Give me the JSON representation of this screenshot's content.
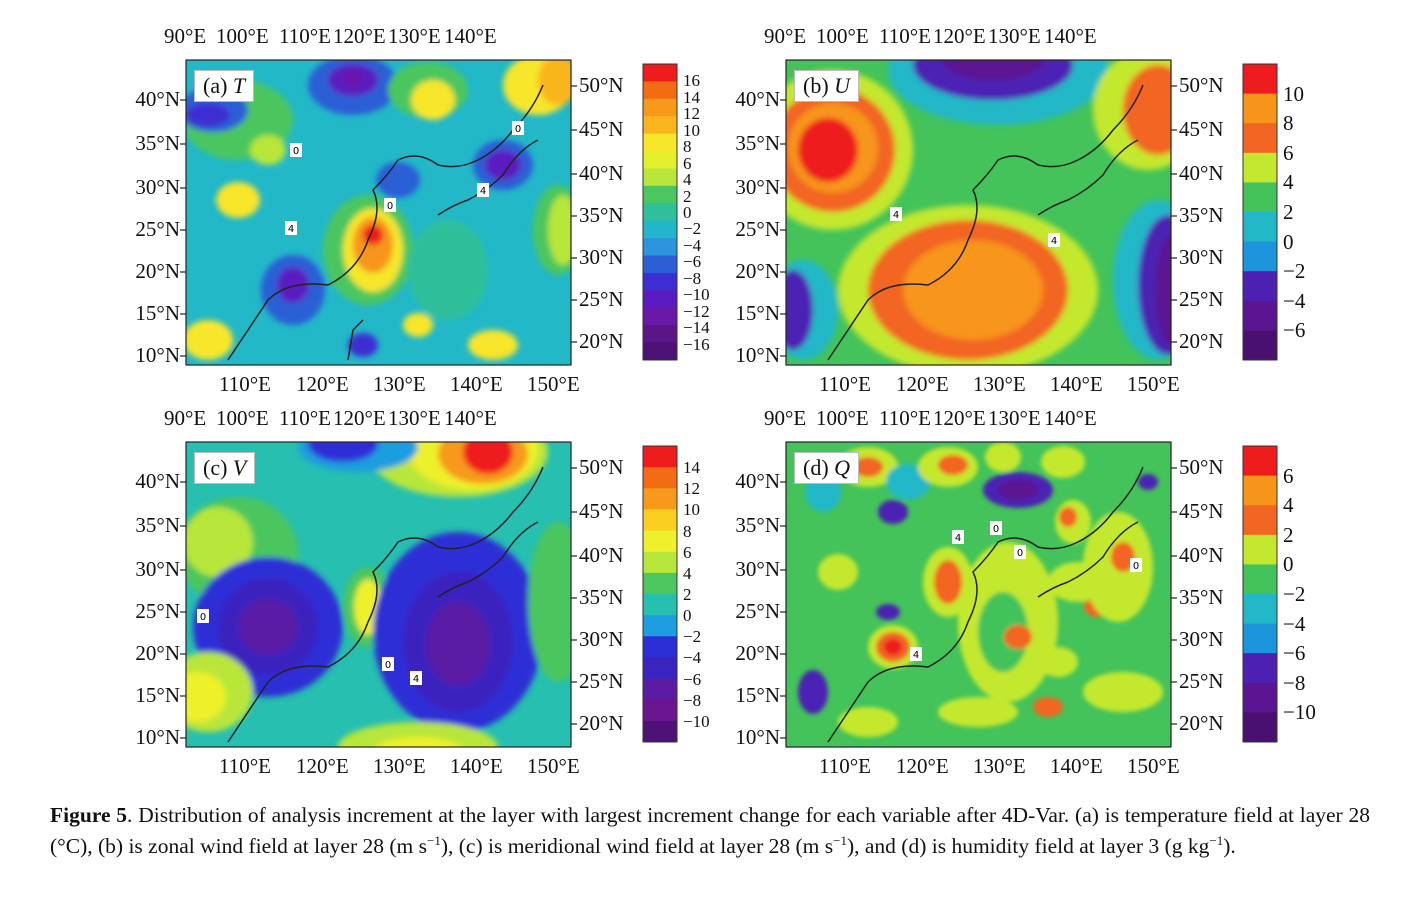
{
  "figure": {
    "top_lon_ticks": [
      "90°E",
      "100°E",
      "110°E",
      "120°E",
      "130°E",
      "140°E"
    ],
    "bottom_lon_ticks": [
      "110°E",
      "120°E",
      "130°E",
      "140°E",
      "150°E"
    ],
    "left_lat_ticks": [
      "40°N",
      "35°N",
      "30°N",
      "25°N",
      "20°N",
      "15°N",
      "10°N"
    ],
    "right_lat_ticks": [
      "50°N",
      "45°N",
      "40°N",
      "35°N",
      "30°N",
      "25°N",
      "20°N"
    ],
    "panels": [
      {
        "label_prefix": "(a) ",
        "variable": "T",
        "colorbar": {
          "colors": [
            "#ee1c1c",
            "#f36b12",
            "#f79a1b",
            "#fbb51f",
            "#f7e629",
            "#e5f02d",
            "#b8e63a",
            "#4cc65e",
            "#2fbf9a",
            "#21b6cc",
            "#2d95dd",
            "#2c5fd6",
            "#3c2ed2",
            "#5a1cc0",
            "#6a18a8",
            "#5a1688",
            "#4c1275"
          ],
          "labels": [
            "16",
            "14",
            "12",
            "10",
            "8",
            "6",
            "4",
            "2",
            "0",
            "−2",
            "−4",
            "−6",
            "−8",
            "−10",
            "−12",
            "−14",
            "−16"
          ]
        },
        "contour_labels": [
          "0",
          "4",
          "0",
          "4",
          "0"
        ]
      },
      {
        "label_prefix": "(b) ",
        "variable": "U",
        "colorbar": {
          "colors": [
            "#ee1c1c",
            "#f7951b",
            "#f26522",
            "#c4e82f",
            "#43c35a",
            "#22b8c8",
            "#1d95dc",
            "#4b20b3",
            "#5c1592",
            "#4a1070"
          ],
          "labels": [
            "10",
            "8",
            "6",
            "4",
            "2",
            "0",
            "−2",
            "−4",
            "−6"
          ]
        },
        "contour_labels": [
          "4",
          "4"
        ]
      },
      {
        "label_prefix": "(c) ",
        "variable": "V",
        "colorbar": {
          "colors": [
            "#ee1c1c",
            "#f36b12",
            "#f79a1b",
            "#fbcf22",
            "#eef02c",
            "#b8e63a",
            "#4cc65e",
            "#26bfb0",
            "#1e9de0",
            "#2d2fd6",
            "#3a24bf",
            "#5a1ca5",
            "#6a148f",
            "#4c1275"
          ],
          "labels": [
            "14",
            "12",
            "10",
            "8",
            "6",
            "4",
            "2",
            "0",
            "−2",
            "−4",
            "−6",
            "−8",
            "−10"
          ]
        },
        "contour_labels": [
          "0",
          "0",
          "4"
        ]
      },
      {
        "label_prefix": "(d) ",
        "variable": "Q",
        "colorbar": {
          "colors": [
            "#ee1c1c",
            "#f7951b",
            "#f26522",
            "#c4e82f",
            "#43c35a",
            "#22b8c8",
            "#1d95dc",
            "#4b20b3",
            "#5c1592",
            "#4a1070"
          ],
          "labels": [
            "6",
            "4",
            "2",
            "0",
            "−2",
            "−4",
            "−6",
            "−8",
            "−10"
          ]
        },
        "contour_labels": [
          "4",
          "0",
          "0",
          "0",
          "4"
        ]
      }
    ]
  },
  "caption": {
    "figure_label": "Figure 5",
    "text_before_sup1": ". Distribution of analysis increment at the layer with largest increment change for each variable after 4D-Var. (a) is temperature field at layer 28 (°C), (b) is zonal wind field at layer 28 (m s",
    "sup1": "−1",
    "text_before_sup2": "), (c) is meridional wind field at layer 28 (m s",
    "sup2": "−1",
    "text_before_sup3": "), and (d) is humidity field at layer 3 (g kg",
    "sup3": "−1",
    "text_end": ")."
  }
}
